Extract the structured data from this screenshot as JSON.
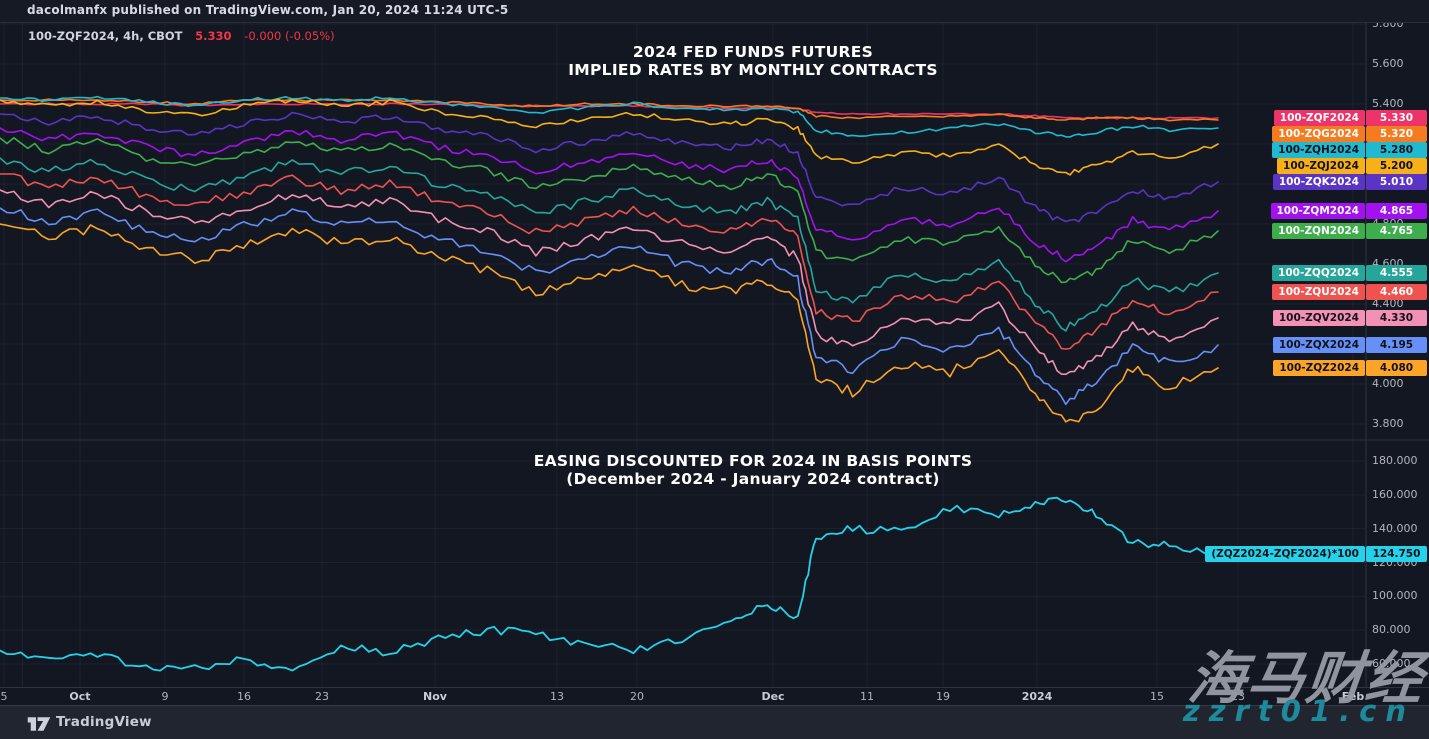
{
  "top_bar": {
    "attribution": "dacolmanfx published on TradingView.com, Jan 20, 2024 11:24 UTC-5"
  },
  "legend": {
    "symbol_text": "100-ZQF2024, 4h, CBOT",
    "price": "5.330",
    "change": "-0.000 (-0.05%)",
    "price_color": "#f23645"
  },
  "footer": {
    "brand": "TradingView"
  },
  "watermark": {
    "line1": "海马财经",
    "line2": "zzrt01.cn"
  },
  "colors": {
    "background": "#131722",
    "grid": "rgba(197,203,219,0.06)",
    "axis_text": "#b2b5be",
    "frame": "#2e3340"
  },
  "chart_data": {
    "type": "line",
    "x_mode": "fraction_of_plotted_range",
    "x": [
      0,
      0.04,
      0.08,
      0.12,
      0.16,
      0.2,
      0.24,
      0.28,
      0.32,
      0.36,
      0.4,
      0.44,
      0.48,
      0.52,
      0.56,
      0.6,
      0.63,
      0.655,
      0.67,
      0.7,
      0.74,
      0.78,
      0.82,
      0.85,
      0.875,
      0.9,
      0.93,
      0.96,
      1.0
    ],
    "xticks": [
      {
        "label": "5",
        "x": 4,
        "major": false
      },
      {
        "label": "Oct",
        "x": 80,
        "major": true
      },
      {
        "label": "9",
        "x": 165,
        "major": false
      },
      {
        "label": "16",
        "x": 244,
        "major": false
      },
      {
        "label": "23",
        "x": 322,
        "major": false
      },
      {
        "label": "Nov",
        "x": 435,
        "major": true
      },
      {
        "label": "13",
        "x": 557,
        "major": false
      },
      {
        "label": "20",
        "x": 637,
        "major": false
      },
      {
        "label": "Dec",
        "x": 773,
        "major": true
      },
      {
        "label": "11",
        "x": 867,
        "major": false
      },
      {
        "label": "19",
        "x": 943,
        "major": false
      },
      {
        "label": "2024",
        "x": 1037,
        "major": true
      },
      {
        "label": "15",
        "x": 1157,
        "major": false
      },
      {
        "label": "23",
        "x": 1238,
        "major": false
      },
      {
        "label": "Feb",
        "x": 1353,
        "major": true
      }
    ],
    "panels": [
      {
        "name": "implied-rates",
        "title": [
          "2024 FED FUNDS FUTURES",
          "IMPLIED RATES BY MONTHLY CONTRACTS"
        ],
        "ylim": [
          3.7,
          5.81
        ],
        "yticks": [
          5.8,
          5.6,
          5.4,
          5.2,
          5.0,
          4.8,
          4.6,
          4.4,
          4.2,
          4.0,
          3.8
        ],
        "ytick_labels": [
          "5.800",
          "5.600",
          "5.400",
          "5.200",
          "5.000",
          "4.800",
          "4.600",
          "4.400",
          "4.200",
          "4.000",
          "3.800"
        ],
        "series": [
          {
            "symbol": "100-ZQF2024",
            "value": 5.33,
            "value_label": "5.330",
            "color": "#ec3468",
            "text_color": "#ffffff",
            "wiggle": 0.004,
            "values": [
              5.4,
              5.4,
              5.4,
              5.4,
              5.39,
              5.4,
              5.4,
              5.4,
              5.4,
              5.4,
              5.39,
              5.39,
              5.39,
              5.39,
              5.38,
              5.38,
              5.38,
              5.38,
              5.36,
              5.35,
              5.35,
              5.35,
              5.35,
              5.34,
              5.33,
              5.33,
              5.33,
              5.33,
              5.33
            ]
          },
          {
            "symbol": "100-ZQG2024",
            "value": 5.32,
            "value_label": "5.320",
            "color": "#f57b20",
            "text_color": "#ffffff",
            "wiggle": 0.005,
            "values": [
              5.42,
              5.42,
              5.42,
              5.41,
              5.4,
              5.42,
              5.42,
              5.42,
              5.42,
              5.41,
              5.4,
              5.39,
              5.4,
              5.4,
              5.39,
              5.39,
              5.39,
              5.38,
              5.34,
              5.33,
              5.34,
              5.34,
              5.35,
              5.33,
              5.32,
              5.33,
              5.33,
              5.32,
              5.32
            ]
          },
          {
            "symbol": "100-ZQH2024",
            "value": 5.28,
            "value_label": "5.280",
            "color": "#20b9cf",
            "text_color": "#10131c",
            "wiggle": 0.009,
            "values": [
              5.43,
              5.42,
              5.43,
              5.41,
              5.39,
              5.42,
              5.43,
              5.42,
              5.43,
              5.4,
              5.39,
              5.36,
              5.38,
              5.4,
              5.38,
              5.37,
              5.38,
              5.36,
              5.27,
              5.24,
              5.26,
              5.28,
              5.3,
              5.26,
              5.24,
              5.26,
              5.29,
              5.27,
              5.28
            ]
          },
          {
            "symbol": "100-ZQJ2024",
            "value": 5.2,
            "value_label": "5.200",
            "color": "#f8b019",
            "text_color": "#10131c",
            "wiggle": 0.013,
            "values": [
              5.42,
              5.39,
              5.41,
              5.37,
              5.34,
              5.39,
              5.42,
              5.39,
              5.41,
              5.36,
              5.34,
              5.29,
              5.32,
              5.35,
              5.32,
              5.3,
              5.32,
              5.28,
              5.14,
              5.11,
              5.16,
              5.14,
              5.19,
              5.1,
              5.05,
              5.09,
              5.16,
              5.13,
              5.2
            ]
          },
          {
            "symbol": "100-ZQK2024",
            "value": 5.01,
            "value_label": "5.010",
            "color": "#5a34c4",
            "text_color": "#ffffff",
            "wiggle": 0.016,
            "values": [
              5.35,
              5.31,
              5.34,
              5.28,
              5.24,
              5.3,
              5.35,
              5.31,
              5.34,
              5.27,
              5.24,
              5.17,
              5.21,
              5.26,
              5.21,
              5.18,
              5.22,
              5.16,
              4.93,
              4.89,
              4.98,
              4.95,
              5.03,
              4.88,
              4.8,
              4.86,
              4.97,
              4.93,
              5.01
            ]
          },
          {
            "symbol": "100-ZQM2024",
            "value": 4.865,
            "value_label": "4.865",
            "color": "#a411f0",
            "text_color": "#ffffff",
            "wiggle": 0.019,
            "values": [
              5.28,
              5.22,
              5.26,
              5.19,
              5.14,
              5.21,
              5.27,
              5.22,
              5.26,
              5.18,
              5.14,
              5.06,
              5.11,
              5.16,
              5.1,
              5.07,
              5.12,
              5.04,
              4.77,
              4.72,
              4.83,
              4.8,
              4.89,
              4.71,
              4.62,
              4.68,
              4.82,
              4.77,
              4.865
            ]
          },
          {
            "symbol": "100-ZQN2024",
            "value": 4.765,
            "value_label": "4.765",
            "color": "#3eae4d",
            "text_color": "#ffffff",
            "wiggle": 0.019,
            "values": [
              5.23,
              5.17,
              5.21,
              5.13,
              5.08,
              5.15,
              5.21,
              5.16,
              5.2,
              5.11,
              5.07,
              4.98,
              5.03,
              5.09,
              5.02,
              4.99,
              5.05,
              4.96,
              4.66,
              4.61,
              4.73,
              4.7,
              4.79,
              4.6,
              4.5,
              4.57,
              4.72,
              4.66,
              4.765
            ]
          },
          {
            "symbol": "100-ZQQ2024",
            "value": 4.555,
            "value_label": "4.555",
            "color": "#26a69a",
            "text_color": "#ffffff",
            "wiggle": 0.022,
            "values": [
              5.13,
              5.06,
              5.11,
              5.02,
              4.97,
              5.04,
              5.11,
              5.05,
              5.09,
              5.0,
              4.95,
              4.85,
              4.91,
              4.97,
              4.89,
              4.86,
              4.92,
              4.82,
              4.47,
              4.41,
              4.55,
              4.51,
              4.61,
              4.41,
              4.28,
              4.36,
              4.52,
              4.45,
              4.555
            ]
          },
          {
            "symbol": "100-ZQU2024",
            "value": 4.46,
            "value_label": "4.460",
            "color": "#ef5350",
            "text_color": "#ffffff",
            "wiggle": 0.022,
            "values": [
              5.05,
              4.98,
              5.03,
              4.94,
              4.89,
              4.96,
              5.03,
              4.96,
              5.01,
              4.91,
              4.86,
              4.76,
              4.82,
              4.88,
              4.8,
              4.77,
              4.83,
              4.73,
              4.37,
              4.31,
              4.45,
              4.41,
              4.51,
              4.3,
              4.18,
              4.26,
              4.42,
              4.35,
              4.46
            ]
          },
          {
            "symbol": "100-ZQV2024",
            "value": 4.33,
            "value_label": "4.330",
            "color": "#f391b4",
            "text_color": "#10131c",
            "wiggle": 0.022,
            "values": [
              4.97,
              4.9,
              4.95,
              4.86,
              4.8,
              4.88,
              4.95,
              4.88,
              4.93,
              4.82,
              4.77,
              4.66,
              4.72,
              4.78,
              4.7,
              4.67,
              4.73,
              4.63,
              4.25,
              4.19,
              4.33,
              4.29,
              4.39,
              4.18,
              4.05,
              4.13,
              4.3,
              4.22,
              4.33
            ]
          },
          {
            "symbol": "100-ZQX2024",
            "value": 4.195,
            "value_label": "4.195",
            "color": "#6690f5",
            "text_color": "#10131c",
            "wiggle": 0.024,
            "values": [
              4.88,
              4.81,
              4.86,
              4.76,
              4.71,
              4.79,
              4.86,
              4.79,
              4.83,
              4.72,
              4.67,
              4.56,
              4.62,
              4.68,
              4.6,
              4.56,
              4.62,
              4.52,
              4.13,
              4.07,
              4.21,
              4.17,
              4.27,
              4.06,
              3.92,
              4.0,
              4.19,
              4.1,
              4.195
            ]
          },
          {
            "symbol": "100-ZQZ2024",
            "value": 4.08,
            "value_label": "4.080",
            "color": "#fca428",
            "text_color": "#10131c",
            "wiggle": 0.026,
            "values": [
              4.8,
              4.73,
              4.78,
              4.68,
              4.62,
              4.7,
              4.77,
              4.7,
              4.74,
              4.63,
              4.57,
              4.46,
              4.52,
              4.58,
              4.5,
              4.46,
              4.52,
              4.42,
              4.02,
              3.96,
              4.1,
              4.06,
              4.16,
              3.95,
              3.8,
              3.88,
              4.08,
              3.98,
              4.08
            ]
          }
        ]
      },
      {
        "name": "easing-basis-points",
        "title": [
          "EASING DISCOUNTED FOR 2024 IN BASIS POINTS",
          "(December 2024 - January 2024 contract)"
        ],
        "ylim": [
          46,
          190
        ],
        "yticks": [
          180,
          160,
          140,
          120,
          100,
          80,
          60
        ],
        "ytick_labels": [
          "180.000",
          "160.000",
          "140.000",
          "120.000",
          "100.000",
          "80.000",
          "60.000"
        ],
        "series": [
          {
            "symbol": "(ZQZ2024-ZQF2024)*100",
            "value": 124.75,
            "value_label": "124.750",
            "color": "#25d2ea",
            "text_color": "#10131c",
            "wiggle": 2.4,
            "values": [
              68,
              62,
              65,
              58,
              57,
              63,
              57,
              70,
              67,
              75,
              80,
              78,
              72,
              68,
              74,
              85,
              95,
              88,
              135,
              140,
              138,
              152,
              148,
              155,
              158,
              148,
              132,
              130,
              124.75
            ]
          }
        ]
      }
    ]
  }
}
